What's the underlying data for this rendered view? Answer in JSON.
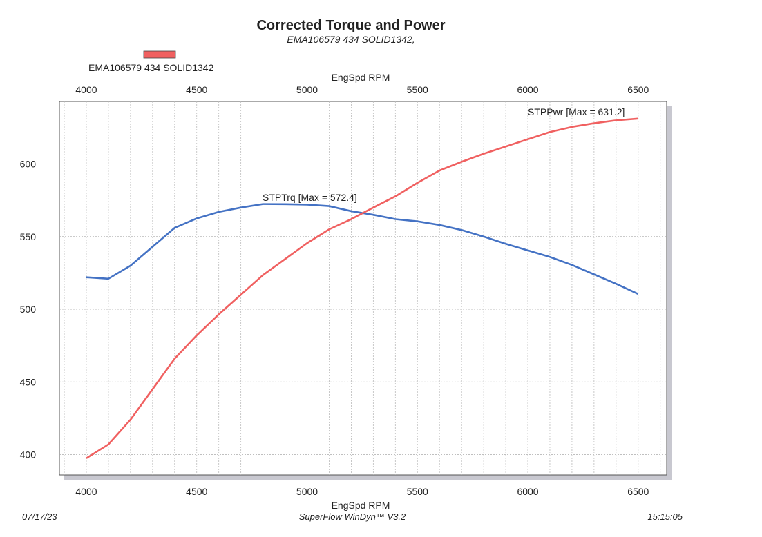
{
  "chart_data": {
    "type": "line",
    "title": "Corrected Torque and Power",
    "subtitle": "EMA106579 434 SOLID1342,",
    "legend": {
      "label": "EMA106579 434 SOLID1342",
      "color": "#f06060",
      "placement": "top-left"
    },
    "xlabel": "EngSpd RPM",
    "xlim": [
      3878,
      6629
    ],
    "ylim": [
      386,
      643
    ],
    "xticks": [
      4000,
      4500,
      5000,
      5500,
      6000,
      6500
    ],
    "yticks": [
      400,
      450,
      500,
      550,
      600
    ],
    "grid": true,
    "x": [
      4000,
      4100,
      4200,
      4300,
      4400,
      4500,
      4600,
      4700,
      4800,
      4900,
      5000,
      5100,
      5200,
      5300,
      5400,
      5500,
      5600,
      5700,
      5800,
      5900,
      6000,
      6100,
      6200,
      6300,
      6400,
      6500
    ],
    "series": [
      {
        "name": "STPTrq",
        "label": "STPTrq [Max = 572.4]",
        "color": "#4472c4",
        "values": [
          522,
          521,
          530,
          543,
          556,
          562.5,
          567,
          570,
          572.4,
          572.3,
          572,
          571,
          567.5,
          565,
          562,
          560.5,
          558,
          554.5,
          550,
          545,
          540.5,
          536,
          530.5,
          524,
          517.5,
          510.5
        ]
      },
      {
        "name": "STPPwr",
        "label": "STPPwr [Max = 631.2]",
        "color": "#f06060",
        "values": [
          397.5,
          407,
          424,
          445,
          466,
          482,
          496.5,
          510,
          523.5,
          534.5,
          545.5,
          555,
          562,
          570,
          577.7,
          587,
          595.5,
          601.5,
          607,
          612,
          617,
          622,
          625.5,
          628,
          630,
          631.2
        ]
      }
    ]
  },
  "footer": {
    "date": "07/17/23",
    "software": "SuperFlow WinDyn™ V3.2",
    "time": "15:15:05"
  }
}
